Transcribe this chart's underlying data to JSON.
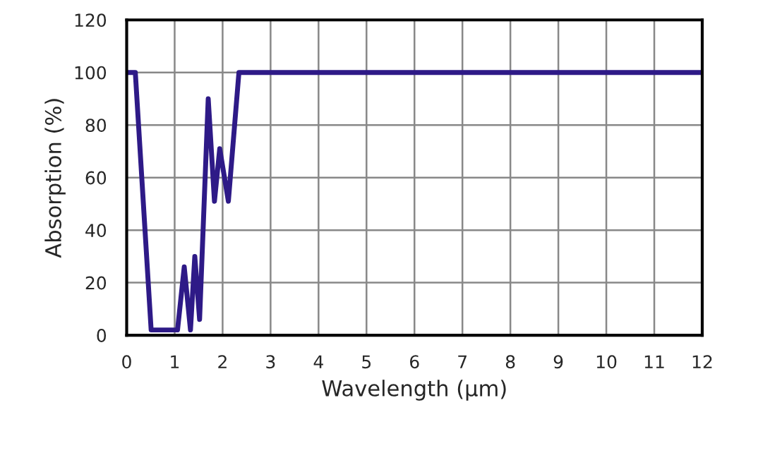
{
  "chart_data": {
    "type": "line",
    "xlabel": "Wavelength (μm)",
    "ylabel": "Absorption (%)",
    "x": [
      0.03,
      0.18,
      0.51,
      1.06,
      1.2,
      1.33,
      1.42,
      1.52,
      1.7,
      1.83,
      1.94,
      2.12,
      2.34,
      12
    ],
    "series": [
      {
        "color": "#2e1a87",
        "values": [
          100,
          100,
          2,
          2,
          26,
          2,
          30,
          6,
          90,
          51,
          71,
          51,
          100,
          100
        ]
      }
    ],
    "xlim": [
      0,
      12
    ],
    "xticks": [
      0,
      1,
      2,
      3,
      4,
      5,
      6,
      7,
      8,
      9,
      10,
      11,
      12
    ],
    "ylim": [
      0,
      120
    ],
    "yticks": [
      0,
      20,
      40,
      60,
      80,
      100,
      120
    ],
    "grid": true,
    "marker": "none",
    "line_style": "solid"
  }
}
